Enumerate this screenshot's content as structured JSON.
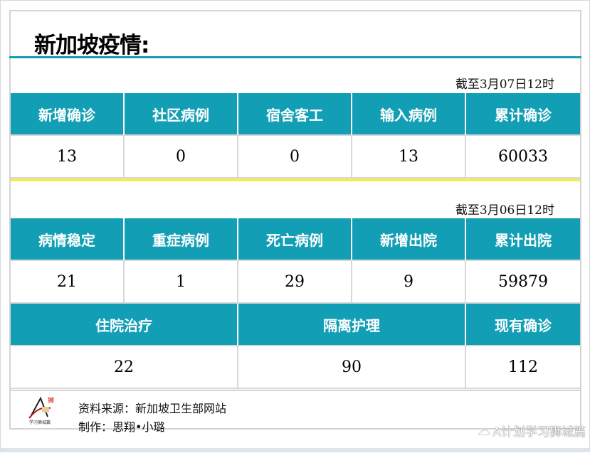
{
  "title": "新加坡疫情:",
  "section1": {
    "date": "截至3月07日12时",
    "headers": [
      "新增确诊",
      "社区病例",
      "宿舍客工",
      "输入病例",
      "累计确诊"
    ],
    "values": [
      "13",
      "0",
      "0",
      "13",
      "60033"
    ]
  },
  "section2": {
    "date": "截至3月06日12时",
    "headers": [
      "病情稳定",
      "重症病例",
      "死亡病例",
      "新增出院",
      "累计出院"
    ],
    "values": [
      "21",
      "1",
      "29",
      "9",
      "59879"
    ],
    "headers2": [
      "住院治疗",
      "隔离护理",
      "现有确诊"
    ],
    "values2": [
      "22",
      "90",
      "112"
    ]
  },
  "footer": {
    "source": "资料来源：新加坡卫生部网站",
    "author": "制作：思翔•小璐",
    "logo_text": "学习狮城篇",
    "watermark": "A计划学习狮城篇"
  },
  "colors": {
    "header": "#129fb5",
    "divider": "#f0ee58"
  }
}
